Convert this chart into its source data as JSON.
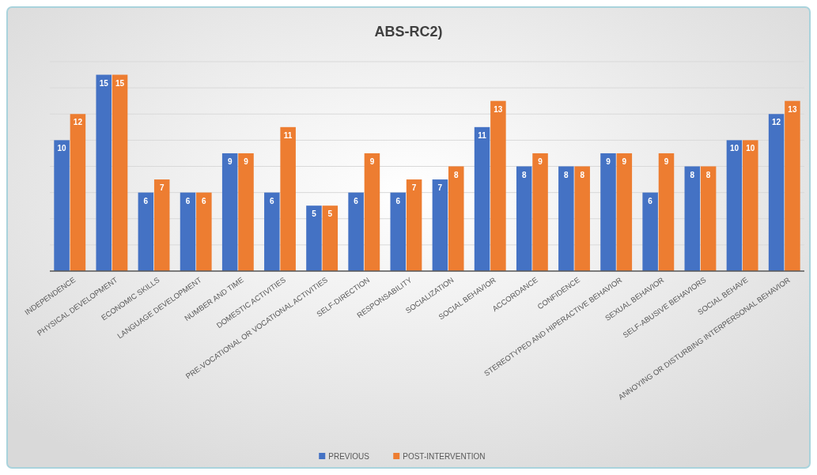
{
  "chart_data": {
    "type": "bar",
    "title": "ABS-RC2)",
    "categories": [
      "INDEPENDENCE",
      "PHYSICAL DEVELOPMENT",
      "ECONOMIC SKILLS",
      "LANGUAGE DEVELOPMENT",
      "NUMBER AND TIME",
      "DOMESTIC ACTIVITIES",
      "PRE-VOCATIONAL OR VOCATIONAL ACTIVITIES",
      "SELF-DIRECTION",
      "RESPONSABILITY",
      "SOCIALIZATION",
      "SOCIAL BEHAVIOR",
      "ACCORDANCE",
      "CONFIDENCE",
      "STEREOTYPED AND HIPERACTIVE BEHAVIOR",
      "SEXUAL BEHAVIOR",
      "SELF-ABUSIVE BEHAVIORS",
      "SOCIAL BEHAVE",
      "ANNOYING OR DISTURBING INTERPERSONAL BEHAVIOR"
    ],
    "series": [
      {
        "name": "PREVIOUS",
        "color": "#4472c4",
        "values": [
          10,
          15,
          6,
          6,
          9,
          6,
          5,
          6,
          6,
          7,
          11,
          8,
          8,
          9,
          6,
          8,
          10,
          12
        ]
      },
      {
        "name": "POST-INTERVENTION",
        "color": "#ed7d31",
        "values": [
          12,
          15,
          7,
          6,
          9,
          11,
          5,
          9,
          7,
          8,
          13,
          9,
          8,
          9,
          9,
          8,
          10,
          13
        ]
      }
    ],
    "ylim": [
      0,
      16
    ],
    "yticks": [
      {
        "value": 0,
        "label": null
      },
      {
        "value": 2,
        "label": null
      },
      {
        "value": 4,
        "label": null
      },
      {
        "value": 6,
        "label": null
      },
      {
        "value": 8,
        "label": null
      },
      {
        "value": 10,
        "label": null
      },
      {
        "value": 12,
        "label": null
      },
      {
        "value": 14,
        "label": null
      },
      {
        "value": 16,
        "label": null
      }
    ],
    "grid": "y",
    "tick_labels": "x",
    "data_labels": true,
    "legend": "bottom"
  }
}
